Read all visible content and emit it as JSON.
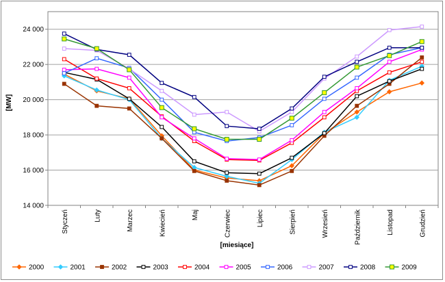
{
  "chart_data": {
    "type": "line",
    "xlabel": "[miesiące]",
    "ylabel": "[MW]",
    "ylim": [
      14000,
      25000
    ],
    "yticks": [
      14000,
      16000,
      18000,
      20000,
      22000,
      24000
    ],
    "ytick_labels": [
      "14 000",
      "16 000",
      "18 000",
      "20 000",
      "22 000",
      "24 000"
    ],
    "grid": "horizontal",
    "legend_position": "bottom",
    "categories": [
      "Styczeń",
      "Luty",
      "Marzec",
      "Kwiecień",
      "Maj",
      "Czerwiec",
      "Lipiec",
      "Sierpień",
      "Wrzesień",
      "Październik",
      "Listopad",
      "Grudzień"
    ],
    "series": [
      {
        "name": "2000",
        "color": "#ff6600",
        "marker": "diamond",
        "values": [
          21450,
          20500,
          20050,
          17950,
          16000,
          15550,
          15400,
          16250,
          18100,
          19300,
          20450,
          20950
        ]
      },
      {
        "name": "2001",
        "color": "#33ccff",
        "marker": "diamond",
        "values": [
          21350,
          20550,
          20000,
          17800,
          16150,
          15650,
          15250,
          16600,
          18150,
          19000,
          21100,
          21900
        ]
      },
      {
        "name": "2002",
        "color": "#993300",
        "marker": "square",
        "values": [
          20900,
          19650,
          19500,
          17800,
          15950,
          15400,
          15150,
          15950,
          17950,
          19650,
          20900,
          22400
        ]
      },
      {
        "name": "2003",
        "color": "#000000",
        "marker": "square-open",
        "values": [
          21550,
          21150,
          20050,
          18450,
          16500,
          15850,
          15800,
          16700,
          18100,
          20200,
          21050,
          21750
        ]
      },
      {
        "name": "2004",
        "color": "#ff0000",
        "marker": "square-open",
        "values": [
          22300,
          21200,
          20650,
          19050,
          17650,
          16600,
          16550,
          17550,
          19000,
          20500,
          21550,
          22150
        ]
      },
      {
        "name": "2005",
        "color": "#ff00ff",
        "marker": "square-open",
        "values": [
          21700,
          21750,
          21250,
          19000,
          17800,
          16650,
          16600,
          17700,
          19300,
          20650,
          22150,
          22850
        ]
      },
      {
        "name": "2006",
        "color": "#3366ff",
        "marker": "square-open",
        "values": [
          21500,
          22350,
          21800,
          20000,
          18150,
          17650,
          17850,
          18550,
          20050,
          21250,
          22550,
          22950
        ]
      },
      {
        "name": "2007",
        "color": "#cc99ff",
        "marker": "square-open",
        "values": [
          22900,
          22800,
          21750,
          20500,
          19150,
          19300,
          18200,
          19300,
          21200,
          22450,
          23950,
          24150
        ]
      },
      {
        "name": "2008",
        "color": "#000080",
        "marker": "square-open",
        "values": [
          23750,
          22850,
          22550,
          20950,
          20150,
          18500,
          18350,
          19500,
          21300,
          22150,
          22950,
          22950
        ]
      },
      {
        "name": "2009",
        "color": "#339933",
        "marker": "square-yellow",
        "values": [
          23450,
          22900,
          21700,
          19550,
          18350,
          17750,
          17750,
          18950,
          20400,
          21850,
          22500,
          23300
        ]
      }
    ]
  }
}
